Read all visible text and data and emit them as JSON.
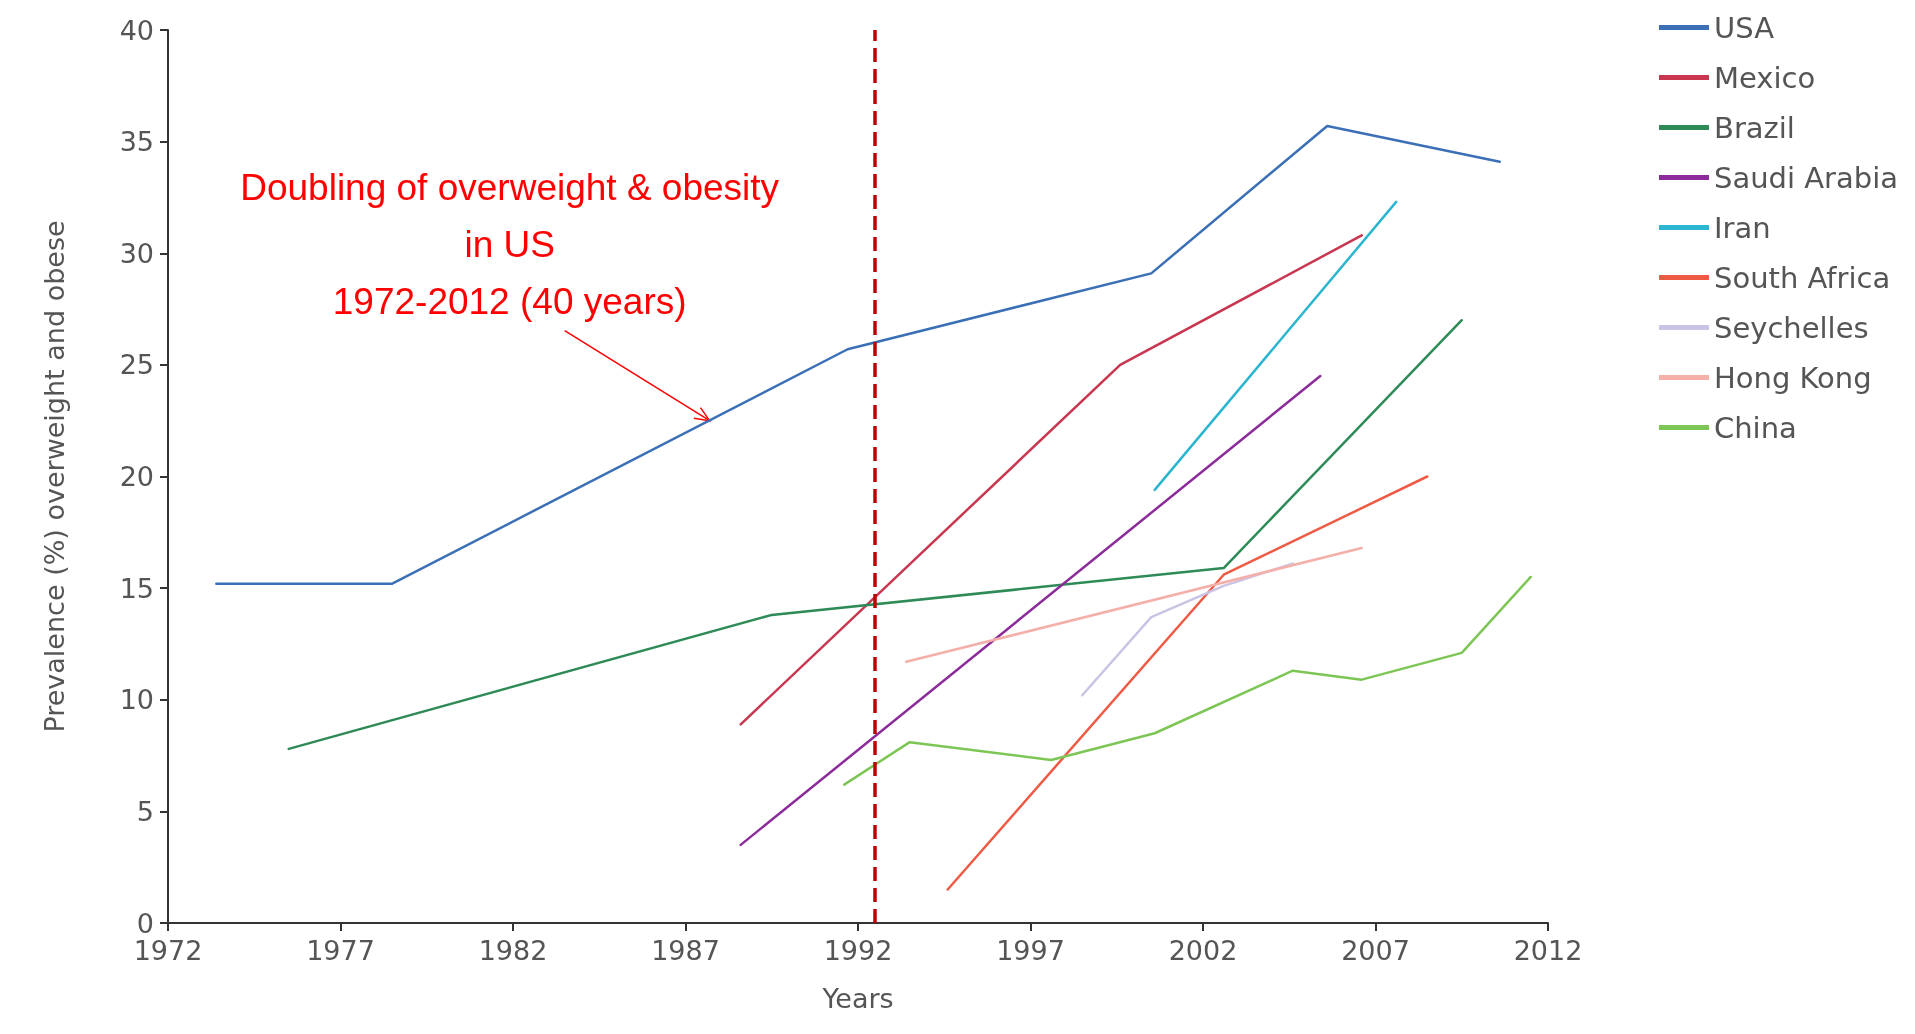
{
  "chart_data": {
    "type": "line",
    "xlabel": "Years",
    "ylabel": "Prevalence (%) overweight and obese",
    "xlim": [
      1972,
      2012
    ],
    "xticks": [
      1972,
      1977,
      1982,
      1987,
      1992,
      1997,
      2002,
      2007,
      2012
    ],
    "ylim": [
      0,
      40
    ],
    "yticks": [
      0,
      5,
      10,
      15,
      20,
      25,
      30,
      35,
      40
    ],
    "grid": false,
    "legend": "top right",
    "marker": "none",
    "line_style": "solid",
    "series": [
      {
        "name": "USA",
        "color": "#3b6fb6",
        "x": [
          1973.4,
          1978.5,
          1991.7,
          2000.5,
          2005.6,
          2010.6
        ],
        "values": [
          15.2,
          15.2,
          25.7,
          29.1,
          35.7,
          34.1
        ]
      },
      {
        "name": "Mexico",
        "color": "#c8364f",
        "x": [
          1988.6,
          1999.6,
          2006.6
        ],
        "values": [
          8.9,
          25.0,
          30.8
        ]
      },
      {
        "name": "Brazil",
        "color": "#2e8b57",
        "x": [
          1975.5,
          1989.5,
          2002.6,
          2009.5
        ],
        "values": [
          7.8,
          13.8,
          15.9,
          27.0
        ]
      },
      {
        "name": "Saudi Arabia",
        "color": "#8b2c9a",
        "x": [
          1988.6,
          2005.4
        ],
        "values": [
          3.5,
          24.5
        ]
      },
      {
        "name": "Iran",
        "color": "#2bb5d0",
        "x": [
          2000.6,
          2007.6
        ],
        "values": [
          19.4,
          32.3
        ]
      },
      {
        "name": "South Africa",
        "color": "#ef5a45",
        "x": [
          1994.6,
          2002.6,
          2008.5
        ],
        "values": [
          1.5,
          15.6,
          20.0
        ]
      },
      {
        "name": "Seychelles",
        "color": "#c9c4e4",
        "x": [
          1998.5,
          2000.5,
          2002.6,
          2004.6
        ],
        "values": [
          10.2,
          13.7,
          15.1,
          16.1
        ]
      },
      {
        "name": "Hong Kong",
        "color": "#f4b0a8",
        "x": [
          1993.4,
          2006.6
        ],
        "values": [
          11.7,
          16.8
        ]
      },
      {
        "name": "China",
        "color": "#7dc655",
        "x": [
          1991.6,
          1993.5,
          1997.6,
          2000.6,
          2004.6,
          2006.6,
          2009.5,
          2011.5
        ],
        "values": [
          6.2,
          8.1,
          7.3,
          8.5,
          11.3,
          10.9,
          12.1,
          15.5
        ]
      }
    ],
    "ref_lines": [
      {
        "axis": "x",
        "value": 1992.5,
        "color": "#c00000",
        "line_style": "dashed"
      }
    ],
    "annotations": [
      {
        "text": "Doubling of overweight & obesity\nin US\n1972-2012 (40 years)",
        "x": 1987.7,
        "y": 22.5
      }
    ]
  }
}
